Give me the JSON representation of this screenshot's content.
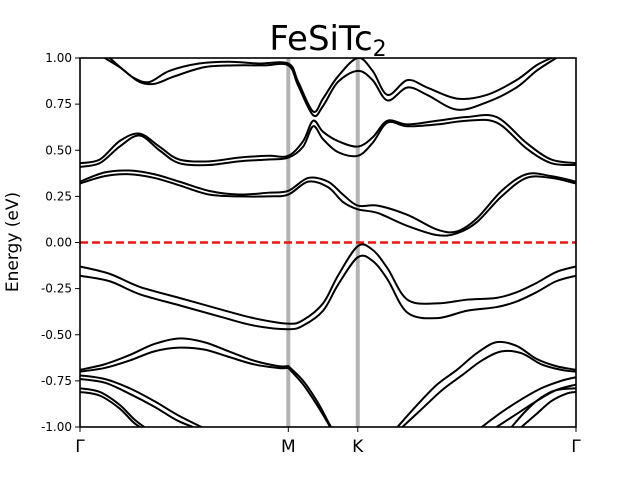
{
  "chart_data": {
    "type": "line",
    "title": "FeSiTc",
    "title_subscript": "2",
    "xlabel": "",
    "ylabel": "Energy (eV)",
    "ylim": [
      -1.0,
      1.0
    ],
    "y_ticks": [
      "-1.00",
      "-0.75",
      "-0.50",
      "-0.25",
      "0.00",
      "0.25",
      "0.50",
      "0.75",
      "1.00"
    ],
    "high_symmetry_points": [
      {
        "label": "Γ",
        "k": 0.0
      },
      {
        "label": "M",
        "k": 0.42
      },
      {
        "label": "K",
        "k": 0.56
      },
      {
        "label": "Γ",
        "k": 1.0
      }
    ],
    "fermi_level": 0.0,
    "colors": {
      "bands": "#000000",
      "fermi": "#e8160c",
      "hs_lines": "#b4b4b4"
    },
    "grid": false,
    "series": [
      {
        "x": [
          0.0,
          0.06,
          0.12,
          0.2,
          0.28,
          0.35,
          0.42,
          0.45,
          0.49,
          0.52,
          0.56,
          0.59,
          0.62,
          0.66,
          0.72,
          0.78,
          0.84,
          0.88,
          0.92,
          0.96,
          1.0
        ],
        "y": [
          -0.13,
          -0.17,
          -0.24,
          -0.3,
          -0.36,
          -0.41,
          -0.44,
          -0.42,
          -0.33,
          -0.18,
          -0.02,
          -0.04,
          -0.14,
          -0.31,
          -0.33,
          -0.31,
          -0.3,
          -0.27,
          -0.22,
          -0.16,
          -0.13
        ]
      },
      {
        "x": [
          0.0,
          0.06,
          0.12,
          0.2,
          0.28,
          0.35,
          0.42,
          0.45,
          0.49,
          0.52,
          0.56,
          0.59,
          0.62,
          0.66,
          0.72,
          0.78,
          0.84,
          0.88,
          0.92,
          0.96,
          1.0
        ],
        "y": [
          -0.18,
          -0.21,
          -0.28,
          -0.34,
          -0.4,
          -0.45,
          -0.47,
          -0.45,
          -0.37,
          -0.23,
          -0.08,
          -0.1,
          -0.2,
          -0.38,
          -0.41,
          -0.37,
          -0.35,
          -0.32,
          -0.27,
          -0.21,
          -0.18
        ]
      },
      {
        "x": [
          0.0,
          0.05,
          0.1,
          0.15,
          0.2,
          0.25,
          0.3,
          0.35,
          0.4,
          0.42
        ],
        "y": [
          -0.69,
          -0.66,
          -0.61,
          -0.55,
          -0.52,
          -0.54,
          -0.59,
          -0.64,
          -0.67,
          -0.67
        ]
      },
      {
        "x": [
          0.0,
          0.05,
          0.1,
          0.15,
          0.2,
          0.25,
          0.3,
          0.35,
          0.4,
          0.42
        ],
        "y": [
          -0.7,
          -0.68,
          -0.64,
          -0.59,
          -0.57,
          -0.58,
          -0.62,
          -0.66,
          -0.68,
          -0.68
        ]
      },
      {
        "x": [
          0.42,
          0.45,
          0.48,
          0.5,
          0.51
        ],
        "y": [
          -0.67,
          -0.75,
          -0.87,
          -0.97,
          -1.02
        ]
      },
      {
        "x": [
          0.42,
          0.45,
          0.48,
          0.5,
          0.51
        ],
        "y": [
          -0.68,
          -0.77,
          -0.89,
          -0.98,
          -1.03
        ]
      },
      {
        "x": [
          0.0,
          0.05,
          0.1,
          0.15,
          0.2,
          0.26
        ],
        "y": [
          -0.72,
          -0.74,
          -0.79,
          -0.86,
          -0.94,
          -1.02
        ]
      },
      {
        "x": [
          0.0,
          0.05,
          0.1,
          0.15,
          0.2,
          0.26
        ],
        "y": [
          -0.74,
          -0.76,
          -0.82,
          -0.89,
          -0.97,
          -1.03
        ]
      },
      {
        "x": [
          0.0,
          0.04,
          0.08,
          0.11,
          0.14
        ],
        "y": [
          -0.79,
          -0.81,
          -0.88,
          -0.96,
          -1.02
        ]
      },
      {
        "x": [
          0.0,
          0.04,
          0.08,
          0.11,
          0.14
        ],
        "y": [
          -0.81,
          -0.83,
          -0.9,
          -0.98,
          -1.03
        ]
      },
      {
        "x": [
          0.64,
          0.68,
          0.72,
          0.76,
          0.8,
          0.84,
          0.88,
          0.92,
          0.96,
          1.0
        ],
        "y": [
          -1.0,
          -0.88,
          -0.77,
          -0.69,
          -0.6,
          -0.54,
          -0.56,
          -0.63,
          -0.67,
          -0.69
        ]
      },
      {
        "x": [
          0.65,
          0.69,
          0.73,
          0.77,
          0.81,
          0.85,
          0.89,
          0.93,
          0.97,
          1.0
        ],
        "y": [
          -1.0,
          -0.9,
          -0.8,
          -0.72,
          -0.64,
          -0.59,
          -0.6,
          -0.66,
          -0.69,
          -0.7
        ]
      },
      {
        "x": [
          0.81,
          0.85,
          0.89,
          0.93,
          0.97,
          1.0
        ],
        "y": [
          -1.0,
          -0.92,
          -0.85,
          -0.79,
          -0.75,
          -0.73
        ]
      },
      {
        "x": [
          0.84,
          0.88,
          0.92,
          0.96,
          1.0
        ],
        "y": [
          -1.0,
          -0.93,
          -0.86,
          -0.8,
          -0.77
        ]
      },
      {
        "x": [
          0.87,
          0.9,
          0.93,
          0.96,
          1.0
        ],
        "y": [
          -1.0,
          -0.91,
          -0.84,
          -0.8,
          -0.79
        ]
      },
      {
        "x": [
          0.89,
          0.92,
          0.95,
          0.98,
          1.0
        ],
        "y": [
          -1.0,
          -0.93,
          -0.86,
          -0.82,
          -0.81
        ]
      },
      {
        "x": [
          0.0,
          0.05,
          0.1,
          0.15,
          0.2,
          0.26,
          0.32,
          0.38,
          0.42,
          0.46,
          0.5,
          0.53,
          0.56,
          0.6,
          0.66,
          0.72,
          0.76,
          0.8,
          0.85,
          0.9,
          0.95,
          1.0
        ],
        "y": [
          0.33,
          0.38,
          0.39,
          0.37,
          0.33,
          0.28,
          0.26,
          0.27,
          0.28,
          0.35,
          0.33,
          0.26,
          0.2,
          0.2,
          0.15,
          0.07,
          0.06,
          0.13,
          0.28,
          0.37,
          0.36,
          0.33
        ]
      },
      {
        "x": [
          0.0,
          0.05,
          0.1,
          0.15,
          0.2,
          0.26,
          0.32,
          0.38,
          0.42,
          0.46,
          0.5,
          0.53,
          0.56,
          0.6,
          0.66,
          0.72,
          0.76,
          0.8,
          0.85,
          0.9,
          0.95,
          1.0
        ],
        "y": [
          0.32,
          0.36,
          0.37,
          0.35,
          0.31,
          0.26,
          0.25,
          0.25,
          0.26,
          0.33,
          0.3,
          0.22,
          0.18,
          0.16,
          0.09,
          0.04,
          0.05,
          0.11,
          0.25,
          0.35,
          0.35,
          0.32
        ]
      },
      {
        "x": [
          0.0,
          0.04,
          0.08,
          0.12,
          0.16,
          0.2,
          0.26,
          0.32,
          0.38,
          0.42,
          0.45,
          0.47,
          0.49,
          0.52,
          0.56,
          0.59,
          0.62,
          0.66,
          0.72,
          0.78,
          0.84,
          0.9,
          0.95,
          1.0
        ],
        "y": [
          0.43,
          0.45,
          0.55,
          0.59,
          0.52,
          0.45,
          0.44,
          0.46,
          0.47,
          0.47,
          0.55,
          0.66,
          0.6,
          0.55,
          0.52,
          0.57,
          0.66,
          0.64,
          0.66,
          0.68,
          0.68,
          0.54,
          0.45,
          0.43
        ]
      },
      {
        "x": [
          0.0,
          0.04,
          0.08,
          0.12,
          0.16,
          0.2,
          0.26,
          0.32,
          0.38,
          0.42,
          0.45,
          0.47,
          0.49,
          0.52,
          0.56,
          0.59,
          0.62,
          0.66,
          0.72,
          0.78,
          0.84,
          0.9,
          0.95,
          1.0
        ],
        "y": [
          0.41,
          0.43,
          0.52,
          0.58,
          0.5,
          0.43,
          0.42,
          0.44,
          0.45,
          0.46,
          0.52,
          0.63,
          0.56,
          0.49,
          0.47,
          0.54,
          0.65,
          0.63,
          0.64,
          0.66,
          0.65,
          0.51,
          0.43,
          0.42
        ]
      },
      {
        "x": [
          0.05,
          0.08,
          0.11,
          0.14,
          0.18,
          0.24,
          0.3,
          0.36,
          0.42,
          0.44,
          0.47,
          0.49,
          0.52,
          0.56,
          0.59,
          0.62,
          0.66,
          0.7,
          0.76,
          0.82,
          0.88,
          0.92,
          0.95
        ],
        "y": [
          1.0,
          0.95,
          0.89,
          0.87,
          0.93,
          0.97,
          0.98,
          0.97,
          0.97,
          0.87,
          0.71,
          0.78,
          0.9,
          1.0,
          0.93,
          0.8,
          0.88,
          0.84,
          0.78,
          0.8,
          0.88,
          0.96,
          1.0
        ]
      },
      {
        "x": [
          0.06,
          0.09,
          0.12,
          0.15,
          0.19,
          0.25,
          0.31,
          0.37,
          0.42,
          0.44,
          0.47,
          0.49,
          0.52,
          0.56,
          0.59,
          0.62,
          0.66,
          0.7,
          0.76,
          0.82,
          0.88,
          0.92,
          0.96
        ],
        "y": [
          1.0,
          0.93,
          0.87,
          0.86,
          0.9,
          0.95,
          0.96,
          0.96,
          0.96,
          0.85,
          0.69,
          0.74,
          0.87,
          0.93,
          0.88,
          0.77,
          0.84,
          0.8,
          0.72,
          0.76,
          0.84,
          0.93,
          1.0
        ]
      }
    ]
  }
}
